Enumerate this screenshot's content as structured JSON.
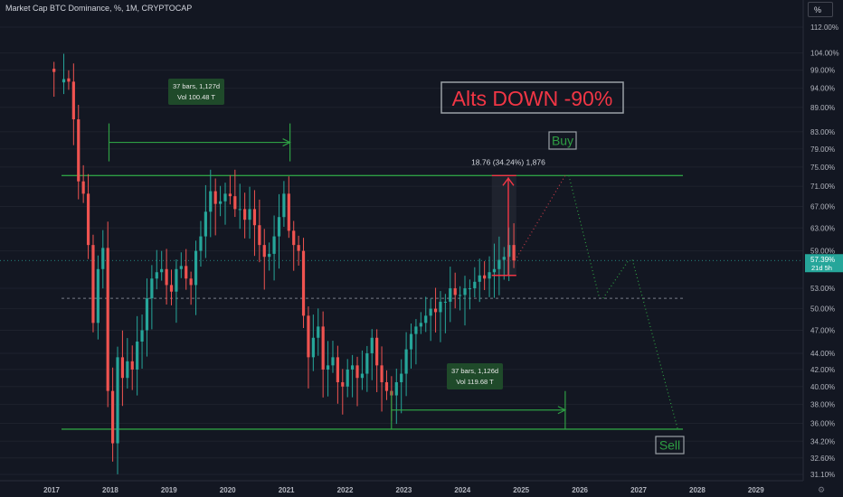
{
  "header": {
    "title": "Market Cap BTC Dominance, %, 1M, CRYPTOCAP",
    "scale_button": "%"
  },
  "colors": {
    "background": "#131722",
    "up": "#26a69a",
    "down": "#ef5350",
    "annotation_green": "#2e9e43",
    "annotation_red": "#f23645",
    "axis_text": "#b2b5be"
  },
  "chart_data": {
    "type": "candlestick",
    "title": "Market Cap BTC Dominance, %, 1M, CRYPTOCAP",
    "y_scale": "log",
    "y_ticks": [
      "112.00%",
      "104.00%",
      "99.00%",
      "94.00%",
      "89.00%",
      "83.00%",
      "79.00%",
      "75.00%",
      "71.00%",
      "67.00%",
      "63.00%",
      "59.00%",
      "53.00%",
      "50.00%",
      "47.00%",
      "44.00%",
      "42.00%",
      "40.00%",
      "38.00%",
      "36.00%",
      "34.20%",
      "32.60%",
      "31.10%"
    ],
    "x_ticks": [
      "2017",
      "2018",
      "2019",
      "2020",
      "2021",
      "2022",
      "2023",
      "2024",
      "2025",
      "2026",
      "2027",
      "2028",
      "2029"
    ],
    "last_price_label": "57.39%",
    "countdown_label": "21d 5h",
    "close_path": [
      [
        "2017-01",
        98.5
      ],
      [
        "2017-03",
        96.5
      ],
      [
        "2017-04",
        95.8
      ],
      [
        "2017-05",
        86.0
      ],
      [
        "2017-06",
        72.0
      ],
      [
        "2017-07",
        69.5
      ],
      [
        "2017-08",
        60.0
      ],
      [
        "2017-09",
        48.0
      ],
      [
        "2017-10",
        56.0
      ],
      [
        "2017-11",
        59.5
      ],
      [
        "2017-12",
        39.5
      ],
      [
        "2018-01",
        34.0
      ],
      [
        "2018-02",
        43.5
      ],
      [
        "2018-03",
        41.0
      ],
      [
        "2018-04",
        43.0
      ],
      [
        "2018-05",
        42.0
      ],
      [
        "2018-06",
        45.5
      ],
      [
        "2018-07",
        47.0
      ],
      [
        "2018-08",
        51.5
      ],
      [
        "2018-09",
        54.5
      ],
      [
        "2018-10",
        55.5
      ],
      [
        "2018-11",
        56.0
      ],
      [
        "2018-12",
        53.5
      ],
      [
        "2019-01",
        52.5
      ],
      [
        "2019-02",
        56.0
      ],
      [
        "2019-03",
        56.5
      ],
      [
        "2019-04",
        54.5
      ],
      [
        "2019-05",
        53.5
      ],
      [
        "2019-06",
        59.0
      ],
      [
        "2019-07",
        61.5
      ],
      [
        "2019-08",
        66.0
      ],
      [
        "2019-09",
        70.0
      ],
      [
        "2019-10",
        67.5
      ],
      [
        "2019-11",
        68.0
      ],
      [
        "2019-12",
        69.5
      ],
      [
        "2020-01",
        69.0
      ],
      [
        "2020-02",
        66.5
      ],
      [
        "2020-03",
        66.5
      ],
      [
        "2020-04",
        64.5
      ],
      [
        "2020-05",
        66.5
      ],
      [
        "2020-06",
        63.5
      ],
      [
        "2020-07",
        60.0
      ],
      [
        "2020-08",
        58.0
      ],
      [
        "2020-09",
        58.5
      ],
      [
        "2020-10",
        61.5
      ],
      [
        "2020-11",
        65.0
      ],
      [
        "2020-12",
        69.5
      ],
      [
        "2021-01",
        62.5
      ],
      [
        "2021-02",
        60.0
      ],
      [
        "2021-03",
        59.0
      ],
      [
        "2021-04",
        49.0
      ],
      [
        "2021-05",
        43.5
      ],
      [
        "2021-06",
        46.0
      ],
      [
        "2021-07",
        47.5
      ],
      [
        "2021-08",
        42.0
      ],
      [
        "2021-09",
        42.5
      ],
      [
        "2021-10",
        43.5
      ],
      [
        "2021-11",
        40.5
      ],
      [
        "2021-12",
        40.0
      ],
      [
        "2022-01",
        42.0
      ],
      [
        "2022-02",
        42.5
      ],
      [
        "2022-03",
        41.0
      ],
      [
        "2022-04",
        41.5
      ],
      [
        "2022-05",
        44.0
      ],
      [
        "2022-06",
        46.0
      ],
      [
        "2022-07",
        42.5
      ],
      [
        "2022-08",
        40.5
      ],
      [
        "2022-09",
        39.5
      ],
      [
        "2022-10",
        39.0
      ],
      [
        "2022-11",
        40.5
      ],
      [
        "2022-12",
        41.5
      ],
      [
        "2023-01",
        44.5
      ],
      [
        "2023-02",
        46.5
      ],
      [
        "2023-03",
        47.5
      ],
      [
        "2023-04",
        48.0
      ],
      [
        "2023-05",
        49.0
      ],
      [
        "2023-06",
        50.0
      ],
      [
        "2023-07",
        49.5
      ],
      [
        "2023-08",
        51.0
      ],
      [
        "2023-09",
        51.0
      ],
      [
        "2023-10",
        53.0
      ],
      [
        "2023-11",
        52.0
      ],
      [
        "2023-12",
        52.0
      ],
      [
        "2024-01",
        53.0
      ],
      [
        "2024-02",
        53.0
      ],
      [
        "2024-03",
        54.0
      ],
      [
        "2024-04",
        55.0
      ],
      [
        "2024-05",
        54.5
      ],
      [
        "2024-06",
        55.5
      ],
      [
        "2024-07",
        56.0
      ],
      [
        "2024-08",
        57.5
      ],
      [
        "2024-09",
        58.0
      ],
      [
        "2024-10",
        60.0
      ],
      [
        "2024-11",
        57.4
      ]
    ],
    "annotations": {
      "headline": "Alts DOWN -90%",
      "buy_label": "Buy",
      "sell_label": "Sell",
      "measure_top": {
        "bars_line": "37 bars, 1,127d",
        "vol_line": "Vol 100.48 T"
      },
      "measure_bottom": {
        "bars_line": "37 bars, 1,126d",
        "vol_line": "Vol 119.68 T"
      },
      "target_label": "18.76 (34.24%) 1,876",
      "resistance_level": 73.2,
      "support_level": 35.4,
      "midline_level": 51.5,
      "projection": [
        [
          "2024-11",
          57.4
        ],
        [
          "2025-10",
          73.2
        ],
        [
          "2026-05",
          51.5
        ],
        [
          "2026-11",
          57.5
        ],
        [
          "2027-09",
          35.4
        ]
      ]
    }
  }
}
